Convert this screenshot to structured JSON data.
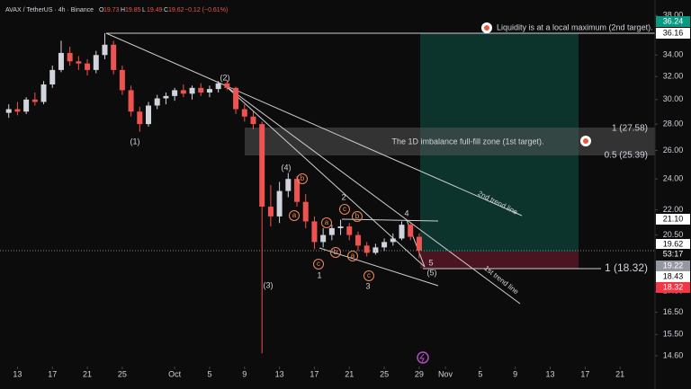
{
  "header": {
    "symbol": "AVAX / TetherUS · 4h · Binance",
    "ohlc": [
      {
        "key": "O",
        "value": 19.73
      },
      {
        "key": "H",
        "value": 19.85
      },
      {
        "key": "L",
        "value": 19.49
      },
      {
        "key": "C",
        "value": 19.62
      }
    ],
    "change": "−0.12 (−0.61%)"
  },
  "chart_data": {
    "type": "candlestick",
    "x": [
      "09-12",
      "09-13",
      "09-14",
      "09-15",
      "09-16",
      "09-17",
      "09-18",
      "09-19",
      "09-20",
      "09-21",
      "09-22",
      "09-23",
      "09-24",
      "09-25",
      "09-26",
      "09-27",
      "09-28",
      "09-29",
      "09-30",
      "10-01",
      "10-02",
      "10-03",
      "10-04",
      "10-05",
      "10-06",
      "10-07",
      "10-08",
      "10-09",
      "10-10",
      "10-11",
      "10-12",
      "10-13",
      "10-14",
      "10-15",
      "10-16",
      "10-17",
      "10-18",
      "10-19",
      "10-20",
      "10-21",
      "10-22",
      "10-23",
      "10-24",
      "10-25",
      "10-26",
      "10-27",
      "10-28",
      "10-29"
    ],
    "open": [
      28.9,
      29.2,
      29.0,
      30.0,
      29.8,
      31.3,
      32.6,
      34.2,
      33.4,
      33.2,
      32.6,
      34.0,
      35.0,
      32.6,
      30.8,
      29.0,
      28.0,
      29.5,
      30.1,
      30.3,
      30.8,
      30.5,
      31.0,
      30.6,
      30.9,
      31.4,
      31.0,
      29.2,
      28.6,
      28.0,
      22.2,
      21.6,
      23.2,
      24.0,
      22.5,
      21.3,
      20.1,
      20.5,
      20.9,
      21.0,
      20.5,
      19.9,
      19.5,
      19.8,
      20.1,
      20.3,
      21.1,
      20.4
    ],
    "high": [
      29.6,
      29.8,
      30.2,
      30.6,
      31.6,
      33.0,
      35.4,
      34.8,
      33.9,
      33.6,
      34.4,
      36.16,
      35.4,
      33.0,
      31.2,
      29.4,
      29.8,
      30.4,
      30.6,
      31.0,
      31.3,
      31.2,
      31.4,
      31.2,
      31.6,
      31.7,
      31.1,
      29.6,
      29.0,
      28.2,
      23.6,
      23.8,
      24.4,
      24.2,
      23.0,
      21.6,
      20.9,
      21.1,
      21.4,
      21.2,
      20.7,
      20.1,
      20.0,
      20.3,
      20.6,
      21.3,
      21.2,
      20.6
    ],
    "low": [
      28.5,
      28.7,
      28.8,
      29.5,
      29.6,
      31.0,
      32.4,
      33.0,
      32.6,
      32.1,
      32.3,
      33.6,
      32.2,
      30.4,
      28.6,
      27.4,
      27.8,
      29.2,
      29.6,
      29.9,
      30.2,
      30.0,
      30.3,
      30.2,
      30.6,
      30.8,
      28.8,
      28.2,
      27.6,
      14.7,
      21.0,
      21.2,
      22.8,
      22.2,
      20.9,
      19.7,
      19.8,
      20.2,
      20.5,
      20.2,
      19.6,
      19.3,
      19.4,
      19.6,
      19.9,
      20.2,
      20.2,
      19.2
    ],
    "close": [
      29.2,
      29.0,
      30.0,
      29.8,
      31.3,
      32.6,
      34.2,
      33.4,
      33.2,
      32.6,
      34.0,
      35.0,
      32.6,
      30.8,
      29.0,
      28.0,
      29.5,
      30.1,
      30.3,
      30.8,
      30.5,
      31.0,
      30.6,
      30.9,
      31.4,
      31.0,
      29.2,
      28.6,
      28.0,
      22.2,
      21.6,
      23.2,
      24.0,
      22.5,
      21.3,
      20.1,
      20.5,
      20.9,
      21.0,
      20.5,
      19.9,
      19.5,
      19.8,
      20.1,
      20.3,
      21.1,
      20.4,
      19.62
    ],
    "up_color": "#d1d4dc",
    "down_color": "#ef5350",
    "log_scale": true,
    "ylim": [
      14.2,
      38.6
    ],
    "yticks": [
      {
        "value": 38,
        "label": "38.00"
      },
      {
        "value": 36,
        "label": "36.00"
      },
      {
        "value": 34,
        "label": "34.00"
      },
      {
        "value": 32,
        "label": "32.00"
      },
      {
        "value": 30,
        "label": "30.00"
      },
      {
        "value": 28,
        "label": "28.00"
      },
      {
        "value": 26,
        "label": "26.00"
      },
      {
        "value": 24,
        "label": "24.00"
      },
      {
        "value": 22,
        "label": "22.00"
      },
      {
        "value": 20.5,
        "label": "20.50"
      },
      {
        "value": 17.5,
        "label": "17.50"
      },
      {
        "value": 16.5,
        "label": "16.50"
      },
      {
        "value": 15.5,
        "label": "15.50"
      },
      {
        "value": 14.6,
        "label": "14.60"
      }
    ],
    "xlim": [
      "09-11",
      "11-25"
    ],
    "xticks": [
      {
        "value": "09-13",
        "label": "13"
      },
      {
        "value": "09-17",
        "label": "17"
      },
      {
        "value": "09-21",
        "label": "21"
      },
      {
        "value": "09-25",
        "label": "25"
      },
      {
        "value": "10-01",
        "label": "Oct"
      },
      {
        "value": "10-05",
        "label": "5"
      },
      {
        "value": "10-09",
        "label": "9"
      },
      {
        "value": "10-13",
        "label": "13"
      },
      {
        "value": "10-17",
        "label": "17"
      },
      {
        "value": "10-21",
        "label": "21"
      },
      {
        "value": "10-25",
        "label": "25"
      },
      {
        "value": "10-29",
        "label": "29"
      },
      {
        "value": "11-01",
        "label": "Nov"
      },
      {
        "value": "11-05",
        "label": "5"
      },
      {
        "value": "11-09",
        "label": "9"
      },
      {
        "value": "11-13",
        "label": "13"
      },
      {
        "value": "11-17",
        "label": "17"
      },
      {
        "value": "11-21",
        "label": "21"
      }
    ],
    "last_price_line": true,
    "price_labels": [
      {
        "value": 36.24,
        "color": "#089981"
      },
      {
        "value": 36.16,
        "color": "#ffffff"
      },
      {
        "value": 21.1,
        "label": "21.10",
        "color": "#ffffff"
      },
      {
        "value": 19.62,
        "color": "#ffffff"
      },
      {
        "label": "53:17",
        "color": "#0c0c0c"
      },
      {
        "value": 19.22,
        "color": "#9598a1"
      },
      {
        "value": 18.43,
        "color": "#ffffff"
      },
      {
        "value": 18.32,
        "color": "#f23645"
      }
    ],
    "annotations": [
      {
        "text": "(1)"
      },
      {
        "text": "(2)"
      },
      {
        "text": "(3)"
      },
      {
        "text": "(4)"
      },
      {
        "text": "(5)"
      },
      {
        "text": "1"
      },
      {
        "text": "2"
      },
      {
        "text": "3"
      },
      {
        "text": "4"
      },
      {
        "text": "5"
      },
      {
        "text": "c"
      },
      {
        "text": "a"
      },
      {
        "text": "b"
      },
      {
        "text": "a"
      },
      {
        "text": "c"
      },
      {
        "text": "b"
      },
      {
        "text": "b"
      },
      {
        "text": "a"
      },
      {
        "text": "c"
      },
      {
        "text": "2nd trend line"
      },
      {
        "text": "1st trend line"
      },
      {
        "text": "The 1D imbalance full-fill zone (1st target)."
      },
      {
        "text": "Liquidity is at a local maximum (2nd target)."
      },
      {
        "text": "1 (27.58)"
      },
      {
        "text": "0.5 (25.39)"
      },
      {
        "text": "1 (18.32)"
      }
    ]
  }
}
